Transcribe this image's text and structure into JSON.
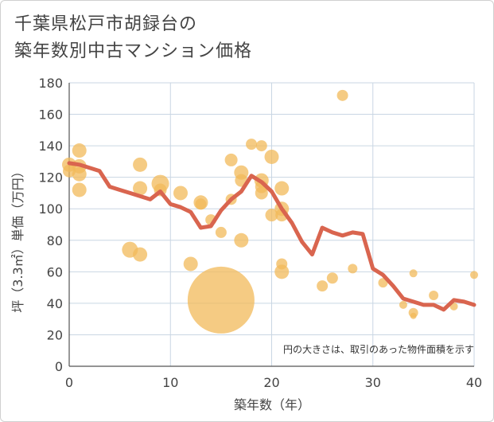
{
  "chart_data": {
    "type": "scatter",
    "title_line1": "千葉県松戸市胡録台の",
    "title_line2": "築年数別中古マンション価格",
    "xlabel": "築年数（年）",
    "ylabel": "坪（3.3㎡）単価（万円）",
    "xlim": [
      0,
      40
    ],
    "ylim": [
      0,
      180
    ],
    "xticks": [
      "0",
      "10",
      "20",
      "30",
      "40"
    ],
    "yticks": [
      "0",
      "20",
      "40",
      "60",
      "80",
      "100",
      "120",
      "140",
      "160",
      "180"
    ],
    "note": "円の大きさは、取引のあった物件面積を示す",
    "grid": true,
    "colors": {
      "bubble": "#f2b95a",
      "line": "#d9654f",
      "grid": "#c9d6e3"
    },
    "bubbles": [
      {
        "x": 0,
        "y": 128,
        "size": 9
      },
      {
        "x": 0,
        "y": 124,
        "size": 8
      },
      {
        "x": 1,
        "y": 137,
        "size": 9
      },
      {
        "x": 1,
        "y": 127,
        "size": 9
      },
      {
        "x": 1,
        "y": 122,
        "size": 9
      },
      {
        "x": 1,
        "y": 112,
        "size": 9
      },
      {
        "x": 6,
        "y": 74,
        "size": 10
      },
      {
        "x": 7,
        "y": 128,
        "size": 9
      },
      {
        "x": 7,
        "y": 113,
        "size": 9
      },
      {
        "x": 7,
        "y": 71,
        "size": 9
      },
      {
        "x": 9,
        "y": 116,
        "size": 11
      },
      {
        "x": 9,
        "y": 112,
        "size": 8
      },
      {
        "x": 11,
        "y": 110,
        "size": 9
      },
      {
        "x": 12,
        "y": 65,
        "size": 9
      },
      {
        "x": 13,
        "y": 104,
        "size": 9
      },
      {
        "x": 13,
        "y": 103,
        "size": 7
      },
      {
        "x": 14,
        "y": 93,
        "size": 7
      },
      {
        "x": 15,
        "y": 42,
        "size": 42
      },
      {
        "x": 15,
        "y": 85,
        "size": 7
      },
      {
        "x": 16,
        "y": 131,
        "size": 8
      },
      {
        "x": 16,
        "y": 106,
        "size": 7
      },
      {
        "x": 17,
        "y": 123,
        "size": 9
      },
      {
        "x": 17,
        "y": 118,
        "size": 8
      },
      {
        "x": 17,
        "y": 80,
        "size": 9
      },
      {
        "x": 18,
        "y": 141,
        "size": 7
      },
      {
        "x": 19,
        "y": 140,
        "size": 7
      },
      {
        "x": 19,
        "y": 118,
        "size": 9
      },
      {
        "x": 19,
        "y": 114,
        "size": 8
      },
      {
        "x": 19,
        "y": 110,
        "size": 8
      },
      {
        "x": 20,
        "y": 133,
        "size": 9
      },
      {
        "x": 20,
        "y": 96,
        "size": 8
      },
      {
        "x": 21,
        "y": 113,
        "size": 9
      },
      {
        "x": 21,
        "y": 100,
        "size": 9
      },
      {
        "x": 21,
        "y": 96,
        "size": 8
      },
      {
        "x": 21,
        "y": 65,
        "size": 7
      },
      {
        "x": 21,
        "y": 60,
        "size": 9
      },
      {
        "x": 25,
        "y": 51,
        "size": 7
      },
      {
        "x": 26,
        "y": 56,
        "size": 7
      },
      {
        "x": 27,
        "y": 172,
        "size": 7
      },
      {
        "x": 28,
        "y": 62,
        "size": 6
      },
      {
        "x": 31,
        "y": 53,
        "size": 6
      },
      {
        "x": 33,
        "y": 39,
        "size": 5
      },
      {
        "x": 34,
        "y": 59,
        "size": 5
      },
      {
        "x": 34,
        "y": 34,
        "size": 6
      },
      {
        "x": 34,
        "y": 32,
        "size": 4
      },
      {
        "x": 36,
        "y": 45,
        "size": 6
      },
      {
        "x": 38,
        "y": 38,
        "size": 5
      },
      {
        "x": 40,
        "y": 58,
        "size": 5
      }
    ],
    "trend": {
      "x": [
        0,
        1,
        2,
        3,
        4,
        5,
        6,
        7,
        8,
        9,
        10,
        11,
        12,
        13,
        14,
        15,
        16,
        17,
        18,
        19,
        20,
        21,
        22,
        23,
        24,
        25,
        26,
        27,
        28,
        29,
        30,
        31,
        32,
        33,
        34,
        35,
        36,
        37,
        38,
        39,
        40
      ],
      "y": [
        129,
        128,
        126,
        124,
        114,
        112,
        110,
        108,
        106,
        111,
        103,
        101,
        98,
        88,
        89,
        99,
        106,
        111,
        121,
        117,
        111,
        100,
        91,
        79,
        71,
        88,
        85,
        83,
        85,
        84,
        62,
        58,
        51,
        43,
        41,
        39,
        39,
        36,
        42,
        41,
        39
      ]
    }
  }
}
